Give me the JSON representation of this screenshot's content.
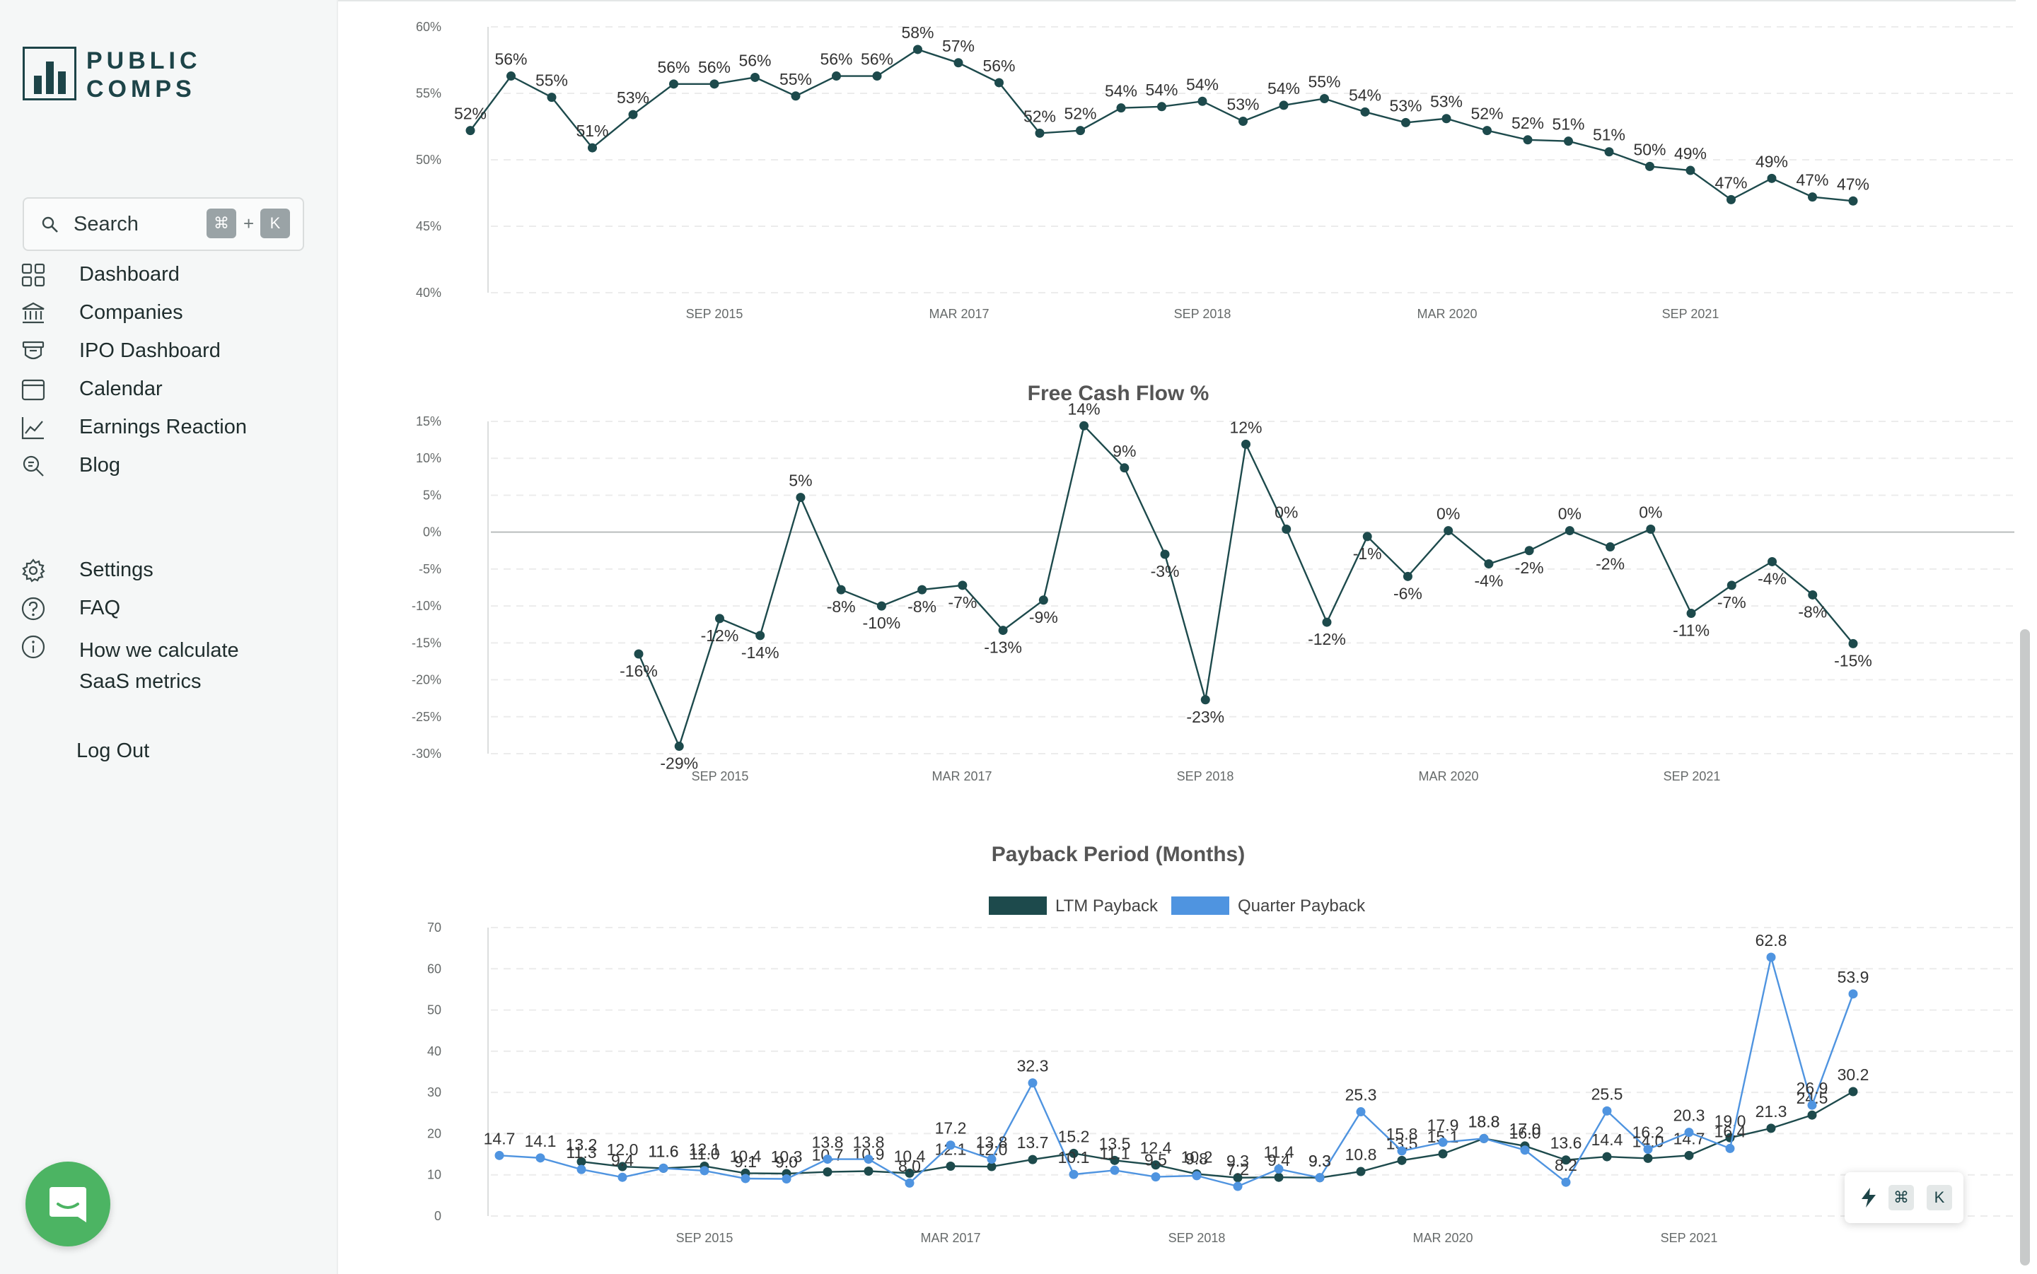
{
  "brand": {
    "line1": "PUBLIC",
    "line2": "COMPS"
  },
  "search": {
    "label": "Search",
    "shortcut_cmd": "⌘",
    "shortcut_plus": "+",
    "shortcut_key": "K"
  },
  "nav": [
    {
      "label": "Dashboard",
      "icon": "grid-icon"
    },
    {
      "label": "Companies",
      "icon": "bank-icon"
    },
    {
      "label": "IPO Dashboard",
      "icon": "ipo-icon"
    },
    {
      "label": "Calendar",
      "icon": "calendar-icon"
    },
    {
      "label": "Earnings Reaction",
      "icon": "chart-line-icon"
    },
    {
      "label": "Blog",
      "icon": "search-doc-icon"
    }
  ],
  "nav2": [
    {
      "label": "Settings",
      "icon": "gear-icon"
    },
    {
      "label": "FAQ",
      "icon": "question-icon"
    },
    {
      "label": "How we calculate SaaS metrics",
      "icon": "info-icon"
    }
  ],
  "logout": "Log Out",
  "quick": {
    "cmd": "⌘",
    "key": "K"
  },
  "chart_data": [
    {
      "type": "line",
      "title": "",
      "ylim": [
        40,
        60
      ],
      "yticks": [
        "40%",
        "45%",
        "50%",
        "55%",
        "60%"
      ],
      "xticks": [
        "SEP 2015",
        "MAR 2017",
        "SEP 2018",
        "MAR 2020",
        "SEP 2021"
      ],
      "series": [
        {
          "values": [
            52,
            56,
            55,
            51,
            53,
            56,
            56,
            56,
            55,
            56,
            56,
            58,
            57,
            56,
            52,
            52,
            54,
            54,
            54,
            53,
            54,
            55,
            54,
            53,
            53,
            52,
            52,
            51,
            51,
            50,
            49,
            47,
            49,
            47,
            47
          ],
          "exact": [
            52.2,
            56.3,
            54.7,
            50.9,
            53.4,
            55.7,
            55.7,
            56.2,
            54.8,
            56.3,
            56.3,
            58.3,
            57.3,
            55.8,
            52.0,
            52.2,
            53.9,
            54.0,
            54.4,
            52.9,
            54.1,
            54.6,
            53.6,
            52.8,
            53.1,
            52.2,
            51.5,
            51.4,
            50.6,
            49.5,
            49.2,
            47.0,
            48.6,
            47.2,
            46.9
          ]
        }
      ],
      "grid": true
    },
    {
      "type": "line",
      "title": "Free Cash Flow %",
      "ylim": [
        -30,
        15
      ],
      "yticks": [
        "-30%",
        "-25%",
        "-20%",
        "-15%",
        "-10%",
        "-5%",
        "0%",
        "5%",
        "10%",
        "15%"
      ],
      "xticks": [
        "SEP 2015",
        "MAR 2017",
        "SEP 2018",
        "MAR 2020",
        "SEP 2021"
      ],
      "series": [
        {
          "values": [
            -16,
            -29,
            -12,
            -14,
            5,
            -8,
            -10,
            -8,
            -7,
            -13,
            -9,
            14,
            9,
            -3,
            -23,
            12,
            0,
            -12,
            -1,
            -6,
            0,
            -4,
            -2,
            0,
            -2,
            0,
            -11,
            -7,
            -4,
            -8,
            -15
          ],
          "exact": [
            -16.5,
            -29.0,
            -11.7,
            -14.0,
            4.7,
            -7.8,
            -10.0,
            -7.8,
            -7.2,
            -13.3,
            -9.2,
            14.4,
            8.7,
            -3.0,
            -22.7,
            11.9,
            0.4,
            -12.2,
            -0.6,
            -6.0,
            0.2,
            -4.3,
            -2.5,
            0.2,
            -2.0,
            0.4,
            -11.0,
            -7.2,
            -4.0,
            -8.5,
            -15.1
          ]
        }
      ],
      "grid": true
    },
    {
      "type": "line",
      "title": "Payback Period (Months)",
      "ylim": [
        0,
        70
      ],
      "yticks": [
        "0",
        "10",
        "20",
        "30",
        "40",
        "50",
        "60",
        "70"
      ],
      "xticks": [
        "SEP 2015",
        "MAR 2017",
        "SEP 2018",
        "MAR 2020",
        "SEP 2021"
      ],
      "legend": "top-center",
      "series": [
        {
          "name": "LTM Payback",
          "color": "#1d4a4c",
          "values": [
            null,
            null,
            13.2,
            12.0,
            11.6,
            12.1,
            10.4,
            10.3,
            10.7,
            10.9,
            10.4,
            12.1,
            12.0,
            13.7,
            15.2,
            13.5,
            12.4,
            10.2,
            9.3,
            9.4,
            9.3,
            10.8,
            13.5,
            15.1,
            18.8,
            17.0,
            13.6,
            14.4,
            14.0,
            14.7,
            19.0,
            21.3,
            24.5,
            30.2
          ]
        },
        {
          "name": "Quarter Payback",
          "color": "#4f94e0",
          "values": [
            14.7,
            14.1,
            11.3,
            9.4,
            11.6,
            11.0,
            9.1,
            9.0,
            13.8,
            13.8,
            8.0,
            17.2,
            13.8,
            32.3,
            10.1,
            11.1,
            9.5,
            9.8,
            7.2,
            11.4,
            9.3,
            25.3,
            15.8,
            17.9,
            18.8,
            16.0,
            8.2,
            25.5,
            16.2,
            20.3,
            16.4,
            62.8,
            26.9,
            53.9
          ]
        }
      ],
      "grid": true
    }
  ]
}
